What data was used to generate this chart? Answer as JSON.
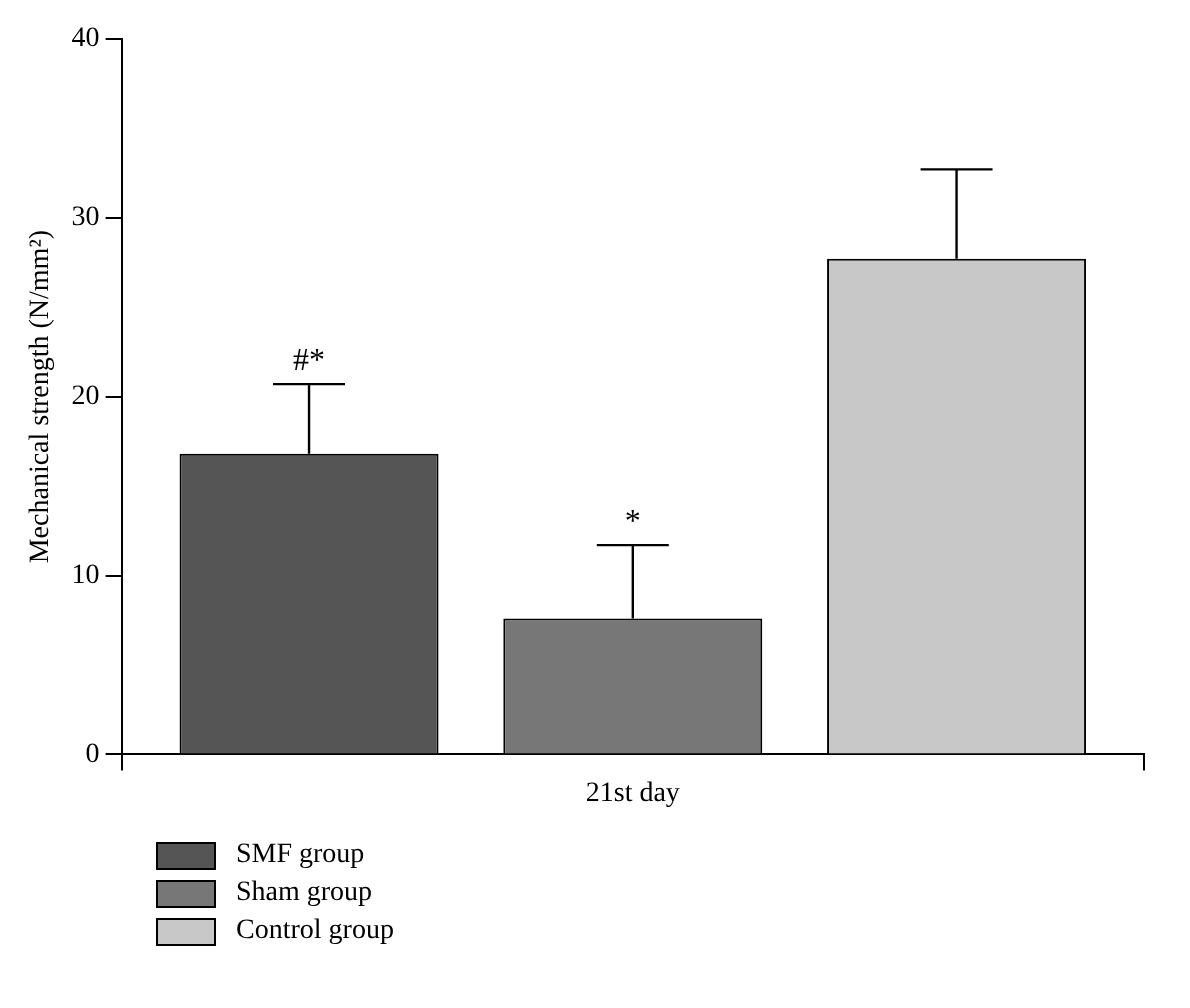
{
  "chart_data": {
    "type": "bar",
    "categories": [
      "21st day"
    ],
    "ylabel": "Mechanical strength (N/mm²)",
    "ylim": [
      0,
      40
    ],
    "yticks": [
      0,
      10,
      20,
      30,
      40
    ],
    "grid": false,
    "legend": "bottom left",
    "series": [
      {
        "name": "SMF group",
        "color": "#555555",
        "values": [
          16.8
        ],
        "errors": [
          3.9
        ]
      },
      {
        "name": "Sham group",
        "color": "#777777",
        "values": [
          7.6
        ],
        "errors": [
          4.1
        ]
      },
      {
        "name": "Control group",
        "color": "#c8c8c8",
        "values": [
          27.7
        ],
        "errors": [
          5.0
        ]
      }
    ],
    "annotations": [
      "#*",
      "*"
    ]
  }
}
